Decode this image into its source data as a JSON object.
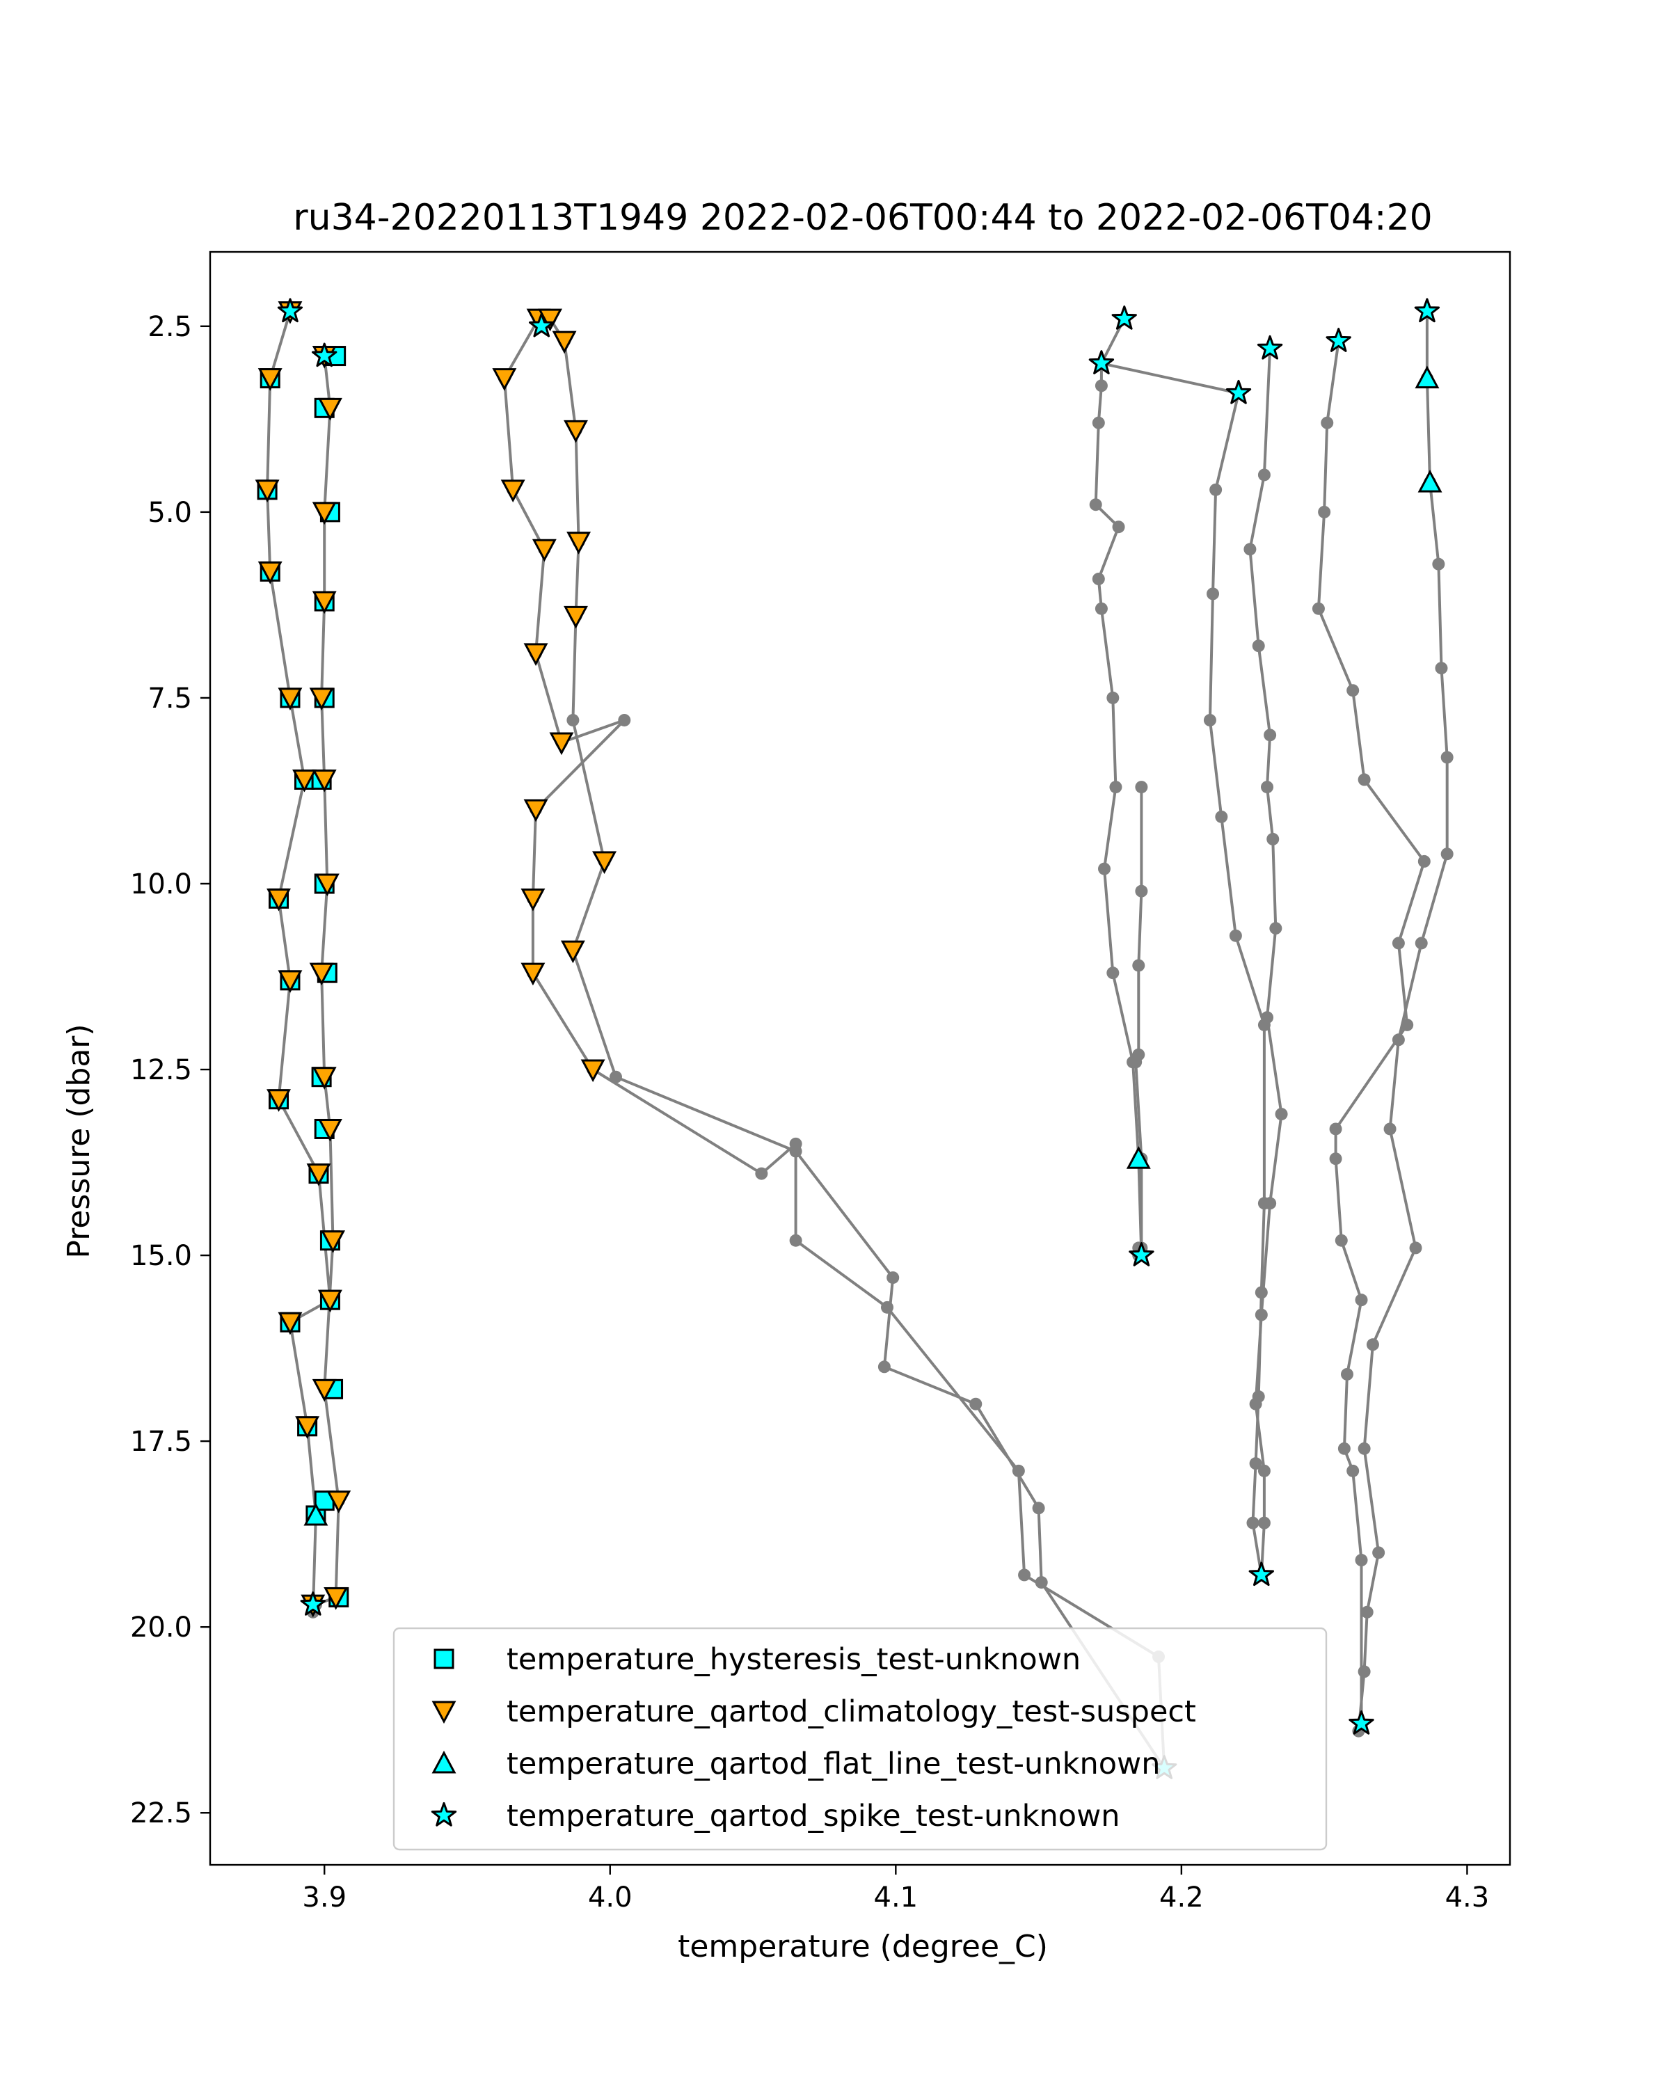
{
  "chart_data": {
    "type": "scatter",
    "title": "ru34-20220113T1949 2022-02-06T00:44 to 2022-02-06T04:20",
    "xlabel": "temperature (degree_C)",
    "ylabel": "Pressure (dbar)",
    "xlim": [
      3.86,
      4.315
    ],
    "ylim": [
      23.2,
      1.5
    ],
    "y_inverted": true,
    "xticks": [
      3.9,
      4.0,
      4.1,
      4.2,
      4.3
    ],
    "xtick_labels": [
      "3.9",
      "4.0",
      "4.1",
      "4.2",
      "4.3"
    ],
    "yticks": [
      2.5,
      5.0,
      7.5,
      10.0,
      12.5,
      15.0,
      17.5,
      20.0,
      22.5
    ],
    "ytick_labels": [
      "2.5",
      "5.0",
      "7.5",
      "10.0",
      "12.5",
      "15.0",
      "17.5",
      "20.0",
      "22.5"
    ],
    "grid": false,
    "legend_position": "lower-center",
    "colors": {
      "profile_line": "#808080",
      "cyan": "#00ffff",
      "orange": "#ffa500",
      "edge": "#000000"
    },
    "profiles": [
      {
        "x": [
          3.888,
          3.881,
          3.88,
          3.881,
          3.888,
          3.893,
          3.884,
          3.888,
          3.884,
          3.898,
          3.902,
          3.888,
          3.894,
          3.897,
          3.896
        ],
        "y": [
          2.3,
          3.2,
          4.7,
          5.8,
          7.5,
          8.6,
          10.2,
          11.3,
          12.9,
          13.9,
          15.6,
          15.9,
          17.3,
          18.5,
          19.8
        ]
      },
      {
        "x": [
          3.9,
          3.902,
          3.9,
          3.9,
          3.899,
          3.9,
          3.901,
          3.899,
          3.9,
          3.902,
          3.903,
          3.9,
          3.905,
          3.904,
          3.897
        ],
        "y": [
          2.9,
          3.6,
          5.0,
          6.2,
          7.5,
          8.6,
          10.0,
          11.2,
          12.6,
          13.3,
          14.8,
          16.8,
          18.3,
          19.6,
          19.7
        ]
      },
      {
        "x": [
          3.975,
          3.963,
          3.966,
          3.977,
          3.974,
          3.983,
          4.005,
          3.974,
          3.973,
          3.973,
          3.994,
          4.053,
          4.065,
          4.065,
          4.097,
          4.143,
          4.145,
          4.192,
          4.194
        ],
        "y": [
          2.4,
          3.2,
          4.7,
          5.5,
          6.9,
          8.1,
          7.8,
          9.0,
          10.2,
          11.2,
          12.5,
          13.9,
          13.5,
          14.8,
          15.7,
          17.9,
          19.3,
          20.4,
          21.9
        ]
      },
      {
        "x": [
          3.979,
          3.984,
          3.988,
          3.989,
          3.988,
          3.987,
          3.998,
          3.987,
          4.002,
          4.065,
          4.099,
          4.096,
          4.128,
          4.15,
          4.151,
          4.194
        ],
        "y": [
          2.4,
          2.7,
          3.9,
          5.4,
          6.4,
          7.8,
          9.7,
          10.9,
          12.6,
          13.6,
          15.3,
          16.5,
          17.0,
          18.4,
          19.4,
          21.9
        ]
      },
      {
        "x": [
          4.18,
          4.172,
          4.172,
          4.171,
          4.17,
          4.178,
          4.171,
          4.172,
          4.176,
          4.177,
          4.173,
          4.176,
          4.183,
          4.185,
          4.186,
          4.185
        ],
        "y": [
          2.4,
          3.0,
          3.3,
          3.8,
          4.9,
          5.2,
          5.9,
          6.3,
          7.5,
          8.7,
          9.8,
          11.2,
          12.4,
          13.7,
          15.0,
          14.9
        ]
      },
      {
        "x": [
          4.172,
          4.22,
          4.212,
          4.211,
          4.21,
          4.214,
          4.219,
          4.229,
          4.229,
          4.228,
          4.227,
          4.226,
          4.225,
          4.228
        ],
        "y": [
          3.0,
          3.4,
          4.7,
          6.1,
          7.8,
          9.1,
          10.7,
          11.9,
          14.3,
          15.5,
          16.9,
          17.8,
          18.6,
          19.3
        ]
      },
      {
        "x": [
          4.186,
          4.186,
          4.185,
          4.185,
          4.184,
          4.186,
          4.186,
          4.186,
          4.185
        ],
        "y": [
          8.7,
          10.1,
          11.1,
          12.3,
          12.4,
          13.7,
          14.9,
          15.0,
          15.0
        ]
      },
      {
        "x": [
          4.231,
          4.229,
          4.224,
          4.227,
          4.231,
          4.23,
          4.232,
          4.233,
          4.23,
          4.235,
          4.231,
          4.228,
          4.226,
          4.229,
          4.229,
          4.228
        ],
        "y": [
          2.8,
          4.5,
          5.5,
          6.8,
          8.0,
          8.7,
          9.4,
          10.6,
          11.8,
          13.1,
          14.3,
          15.8,
          17.0,
          17.9,
          18.6,
          19.3
        ]
      },
      {
        "x": [
          4.255,
          4.251,
          4.25,
          4.248,
          4.26,
          4.264,
          4.285,
          4.276,
          4.279,
          4.254,
          4.254,
          4.256,
          4.263,
          4.258,
          4.257,
          4.26,
          4.263,
          4.263
        ],
        "y": [
          2.7,
          3.8,
          5.0,
          6.3,
          7.4,
          8.6,
          9.7,
          10.8,
          11.9,
          13.3,
          13.7,
          14.8,
          15.6,
          16.6,
          17.6,
          17.9,
          19.1,
          21.3
        ]
      },
      {
        "x": [
          4.286,
          4.286,
          4.287,
          4.29,
          4.291,
          4.293,
          4.293,
          4.284,
          4.276,
          4.273,
          4.282,
          4.267,
          4.264,
          4.269,
          4.265,
          4.264,
          4.262
        ],
        "y": [
          2.3,
          3.2,
          4.6,
          5.7,
          7.1,
          8.3,
          9.6,
          10.8,
          12.1,
          13.3,
          14.9,
          16.2,
          17.6,
          19.0,
          19.8,
          20.6,
          21.4
        ]
      }
    ],
    "series": [
      {
        "name": "temperature_hysteresis_test-unknown",
        "marker": "square",
        "color": "#00ffff",
        "x": [
          3.881,
          3.88,
          3.881,
          3.888,
          3.893,
          3.884,
          3.888,
          3.884,
          3.898,
          3.902,
          3.888,
          3.894,
          3.897,
          3.9,
          3.902,
          3.9,
          3.9,
          3.899,
          3.9,
          3.901,
          3.899,
          3.9,
          3.902,
          3.903,
          3.9,
          3.905,
          3.904
        ],
        "y": [
          3.2,
          4.7,
          5.8,
          7.5,
          8.6,
          10.2,
          11.3,
          12.9,
          13.9,
          15.6,
          15.9,
          17.3,
          18.5,
          3.6,
          5.0,
          6.2,
          7.5,
          8.6,
          10.0,
          11.2,
          12.6,
          13.3,
          14.8,
          16.8,
          18.3,
          19.6,
          2.9
        ]
      },
      {
        "name": "temperature_qartod_climatology_test-suspect",
        "marker": "triangle-down",
        "color": "#ffa500",
        "x": [
          3.888,
          3.881,
          3.88,
          3.881,
          3.888,
          3.893,
          3.884,
          3.888,
          3.884,
          3.898,
          3.902,
          3.888,
          3.894,
          3.896,
          3.9,
          3.902,
          3.9,
          3.9,
          3.899,
          3.9,
          3.901,
          3.899,
          3.9,
          3.902,
          3.903,
          3.9,
          3.905,
          3.904,
          3.975,
          3.979,
          3.984,
          3.963,
          3.988,
          3.966,
          3.989,
          3.977,
          3.988,
          3.974,
          3.983,
          3.974,
          3.998,
          3.973,
          3.987,
          3.973,
          3.994
        ],
        "y": [
          2.3,
          3.2,
          4.7,
          5.8,
          7.5,
          8.6,
          10.2,
          11.3,
          12.9,
          13.9,
          15.6,
          15.9,
          17.3,
          19.7,
          2.9,
          3.6,
          5.0,
          6.2,
          7.5,
          8.6,
          10.0,
          11.2,
          12.6,
          13.3,
          14.8,
          16.8,
          18.3,
          19.6,
          2.4,
          2.4,
          2.7,
          3.2,
          3.9,
          4.7,
          5.4,
          5.5,
          6.4,
          6.9,
          8.1,
          9.0,
          9.7,
          10.2,
          10.9,
          11.2,
          12.5
        ]
      },
      {
        "name": "temperature_qartod_flat_line_test-unknown",
        "marker": "triangle-up",
        "color": "#00ffff",
        "x": [
          3.897,
          4.185,
          4.286,
          4.287
        ],
        "y": [
          18.5,
          13.7,
          3.2,
          4.6
        ]
      },
      {
        "name": "temperature_qartod_spike_test-unknown",
        "marker": "star",
        "color": "#00ffff",
        "x": [
          3.888,
          3.9,
          3.896,
          3.976,
          4.18,
          4.172,
          4.22,
          4.186,
          4.231,
          4.255,
          4.286,
          4.228,
          4.194,
          4.263
        ],
        "y": [
          2.3,
          2.9,
          19.7,
          2.5,
          2.4,
          3.0,
          3.4,
          15.0,
          2.8,
          2.7,
          2.3,
          19.3,
          21.9,
          21.3
        ]
      }
    ]
  }
}
